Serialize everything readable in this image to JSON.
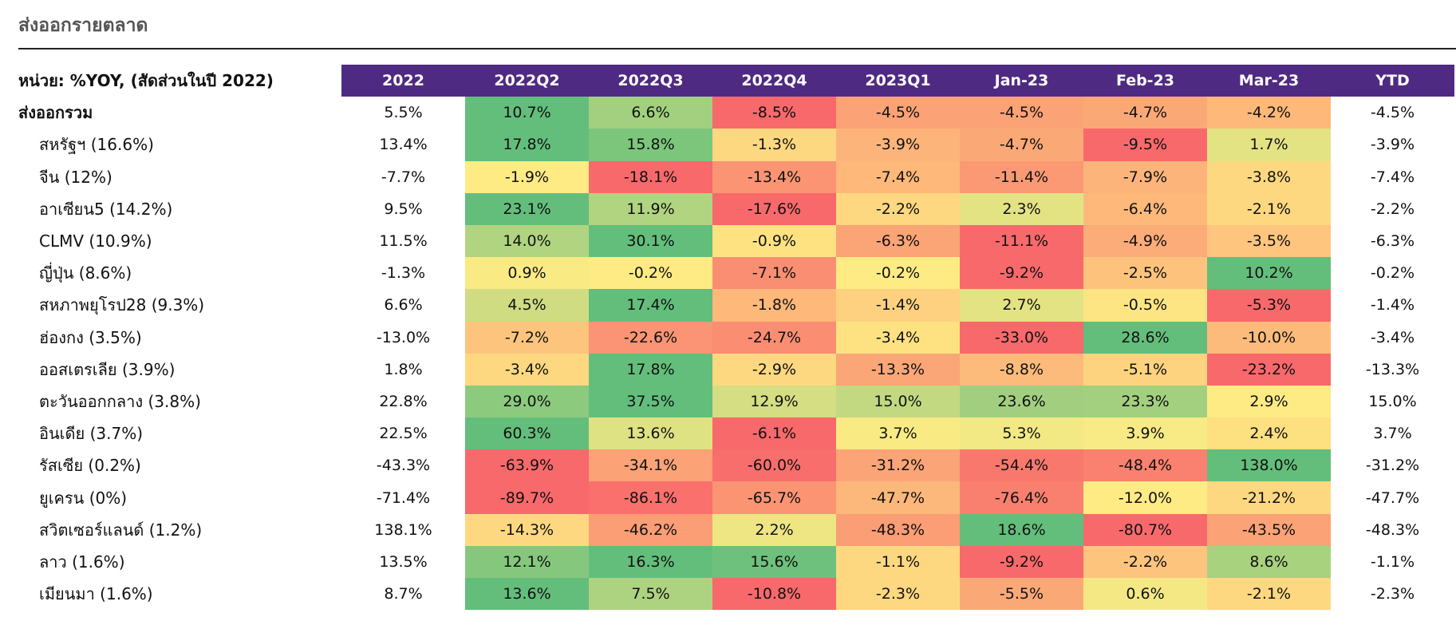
{
  "title": "ส่งออกรายตลาด",
  "chart_data": {
    "type": "table",
    "unit_label": "หน่วย: %YOY, (สัดส่วนในปี 2022)",
    "columns": [
      "2022",
      "2022Q2",
      "2022Q3",
      "2022Q4",
      "2023Q1",
      "Jan-23",
      "Feb-23",
      "Mar-23",
      "YTD"
    ],
    "rows": [
      {
        "label": "ส่งออกรวม",
        "values": [
          "5.5%",
          "10.7%",
          "6.6%",
          "-8.5%",
          "-4.5%",
          "-4.5%",
          "-4.7%",
          "-4.2%",
          "-4.5%"
        ],
        "colors": [
          "#63be7b",
          "#a2d07f",
          "#f8696b",
          "#fba276",
          "#fba276",
          "#fba877",
          "#fdb87a"
        ]
      },
      {
        "label": "สหรัฐฯ (16.6%)",
        "values": [
          "13.4%",
          "17.8%",
          "15.8%",
          "-1.3%",
          "-3.9%",
          "-4.7%",
          "-9.5%",
          "1.7%",
          "-3.9%"
        ],
        "colors": [
          "#63be7b",
          "#7cc67c",
          "#fed880",
          "#fdb47a",
          "#fba877",
          "#f8696b",
          "#e4e383"
        ]
      },
      {
        "label": "จีน (12%)",
        "values": [
          "-7.7%",
          "-1.9%",
          "-18.1%",
          "-13.4%",
          "-7.4%",
          "-11.4%",
          "-7.9%",
          "-3.8%",
          "-7.4%"
        ],
        "colors": [
          "#ffeb84",
          "#f8696b",
          "#fa9473",
          "#fdb87a",
          "#fb9975",
          "#fdb47a",
          "#fed880"
        ]
      },
      {
        "label": "อาเซียน5 (14.2%)",
        "values": [
          "9.5%",
          "23.1%",
          "11.9%",
          "-17.6%",
          "-2.2%",
          "2.3%",
          "-6.4%",
          "-2.1%",
          "-2.2%"
        ],
        "colors": [
          "#63be7b",
          "#b1d480",
          "#f8696b",
          "#fed880",
          "#e3e383",
          "#fdb87a",
          "#fed880"
        ]
      },
      {
        "label": "CLMV (10.9%)",
        "values": [
          "11.5%",
          "14.0%",
          "30.1%",
          "-0.9%",
          "-6.3%",
          "-11.1%",
          "-4.9%",
          "-3.5%",
          "-6.3%"
        ],
        "colors": [
          "#b1d480",
          "#63be7b",
          "#fee282",
          "#fba476",
          "#f8696b",
          "#fbac78",
          "#fdc57d"
        ]
      },
      {
        "label": "ญี่ปุ่น (8.6%)",
        "values": [
          "-1.3%",
          "0.9%",
          "-0.2%",
          "-7.1%",
          "-0.2%",
          "-9.2%",
          "-2.5%",
          "10.2%",
          "-0.2%"
        ],
        "colors": [
          "#f9ea84",
          "#ffeb84",
          "#fa8e72",
          "#ffeb84",
          "#f8696b",
          "#fdc37d",
          "#63be7b"
        ]
      },
      {
        "label": "สหภาพยุโรป28 (9.3%)",
        "values": [
          "6.6%",
          "4.5%",
          "17.4%",
          "-1.8%",
          "-1.4%",
          "2.7%",
          "-0.5%",
          "-5.3%",
          "-1.4%"
        ],
        "colors": [
          "#cfdc81",
          "#63be7b",
          "#fdb87a",
          "#fdd17f",
          "#e3e383",
          "#fde583",
          "#f8696b"
        ]
      },
      {
        "label": "ฮ่องกง (3.5%)",
        "values": [
          "-13.0%",
          "-7.2%",
          "-22.6%",
          "-24.7%",
          "-3.4%",
          "-33.0%",
          "28.6%",
          "-10.0%",
          "-3.4%"
        ],
        "colors": [
          "#fdc47d",
          "#fa9474",
          "#fa8d72",
          "#fee282",
          "#f8696b",
          "#63be7b",
          "#fdbb7b"
        ]
      },
      {
        "label": "ออสเตรเลีย (3.9%)",
        "values": [
          "1.8%",
          "-3.4%",
          "17.8%",
          "-2.9%",
          "-13.3%",
          "-8.8%",
          "-5.1%",
          "-23.2%",
          "-13.3%"
        ],
        "colors": [
          "#fed880",
          "#63be7b",
          "#fed880",
          "#fba677",
          "#fdbb7b",
          "#fdd37f",
          "#f8696b"
        ]
      },
      {
        "label": "ตะวันออกกลาง (3.8%)",
        "values": [
          "22.8%",
          "29.0%",
          "37.5%",
          "12.9%",
          "15.0%",
          "23.6%",
          "23.3%",
          "2.9%",
          "15.0%"
        ],
        "colors": [
          "#8cca7e",
          "#63be7b",
          "#d5de82",
          "#c2d981",
          "#a1cf7f",
          "#a3d07f",
          "#ffeb84"
        ]
      },
      {
        "label": "อินเดีย (3.7%)",
        "values": [
          "22.5%",
          "60.3%",
          "13.6%",
          "-6.1%",
          "3.7%",
          "5.3%",
          "3.9%",
          "2.4%",
          "3.7%"
        ],
        "colors": [
          "#63be7b",
          "#dfe283",
          "#f8696b",
          "#f9ea84",
          "#f2e884",
          "#f8ea84",
          "#fde07f"
        ]
      },
      {
        "label": "รัสเซีย (0.2%)",
        "values": [
          "-43.3%",
          "-63.9%",
          "-34.1%",
          "-60.0%",
          "-31.2%",
          "-54.4%",
          "-48.4%",
          "138.0%",
          "-31.2%"
        ],
        "colors": [
          "#f8696b",
          "#fba276",
          "#f86e6c",
          "#fba477",
          "#f9786d",
          "#fa816f",
          "#63be7b"
        ]
      },
      {
        "label": "ยูเครน (0%)",
        "values": [
          "-71.4%",
          "-89.7%",
          "-86.1%",
          "-65.7%",
          "-47.7%",
          "-76.4%",
          "-12.0%",
          "-21.2%",
          "-47.7%"
        ],
        "colors": [
          "#f8696b",
          "#f9706c",
          "#fa9473",
          "#fcb87a",
          "#f9806f",
          "#ffeb84",
          "#fed880"
        ]
      },
      {
        "label": "สวิตเซอร์แลนด์ (1.2%)",
        "values": [
          "138.1%",
          "-14.3%",
          "-46.2%",
          "2.2%",
          "-48.3%",
          "18.6%",
          "-80.7%",
          "-43.5%",
          "-48.3%"
        ],
        "colors": [
          "#fed880",
          "#fb9d75",
          "#ede683",
          "#fb9d75",
          "#63be7b",
          "#f8696b",
          "#fba276"
        ]
      },
      {
        "label": "ลาว (1.6%)",
        "values": [
          "13.5%",
          "12.1%",
          "16.3%",
          "15.6%",
          "-1.1%",
          "-9.2%",
          "-2.2%",
          "8.6%",
          "-1.1%"
        ],
        "colors": [
          "#85c87d",
          "#63be7b",
          "#6ec17c",
          "#fed880",
          "#f8696b",
          "#fdc47d",
          "#a9d27f"
        ]
      },
      {
        "label": "เมียนมา (1.6%)",
        "values": [
          "8.7%",
          "13.6%",
          "7.5%",
          "-10.8%",
          "-2.3%",
          "-5.5%",
          "0.6%",
          "-2.1%",
          "-2.3%"
        ],
        "colors": [
          "#63be7b",
          "#aed380",
          "#f8696b",
          "#fed880",
          "#fba877",
          "#f4e884",
          "#fed880"
        ]
      }
    ]
  }
}
